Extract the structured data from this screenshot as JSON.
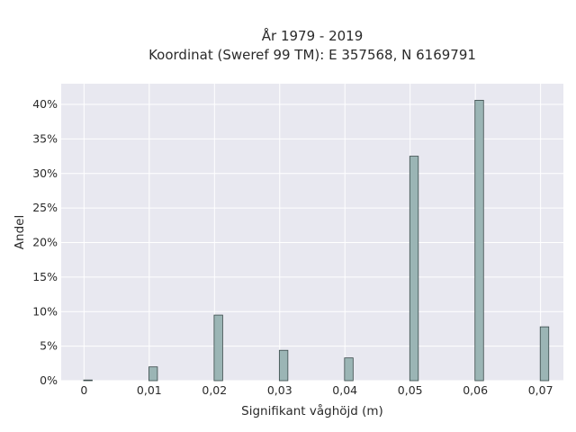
{
  "chart_data": {
    "type": "bar",
    "title": "År 1979 - 2019",
    "subtitle": "Koordinat (Sweref 99 TM): E 357568, N 6169791",
    "xlabel": "Signifikant våghöjd (m)",
    "ylabel": "Andel",
    "x_ticks": [
      "0",
      "0,01",
      "0,02",
      "0,03",
      "0,04",
      "0,05",
      "0,06",
      "0,07"
    ],
    "y_ticks": [
      "0%",
      "5%",
      "10%",
      "15%",
      "20%",
      "25%",
      "30%",
      "35%",
      "40%"
    ],
    "xlim": [
      -0.0035,
      0.0735
    ],
    "ylim": [
      0,
      43
    ],
    "grid": true,
    "bar_color": "#9bb5b5",
    "bar_edge_color": "#3a4a4a",
    "background_color": "#e8e8f0",
    "x": [
      0.0006,
      0.0106,
      0.0206,
      0.0306,
      0.0406,
      0.0506,
      0.0606,
      0.0706
    ],
    "values": [
      0.1,
      2.0,
      9.5,
      4.4,
      3.3,
      32.5,
      40.6,
      7.8
    ]
  }
}
